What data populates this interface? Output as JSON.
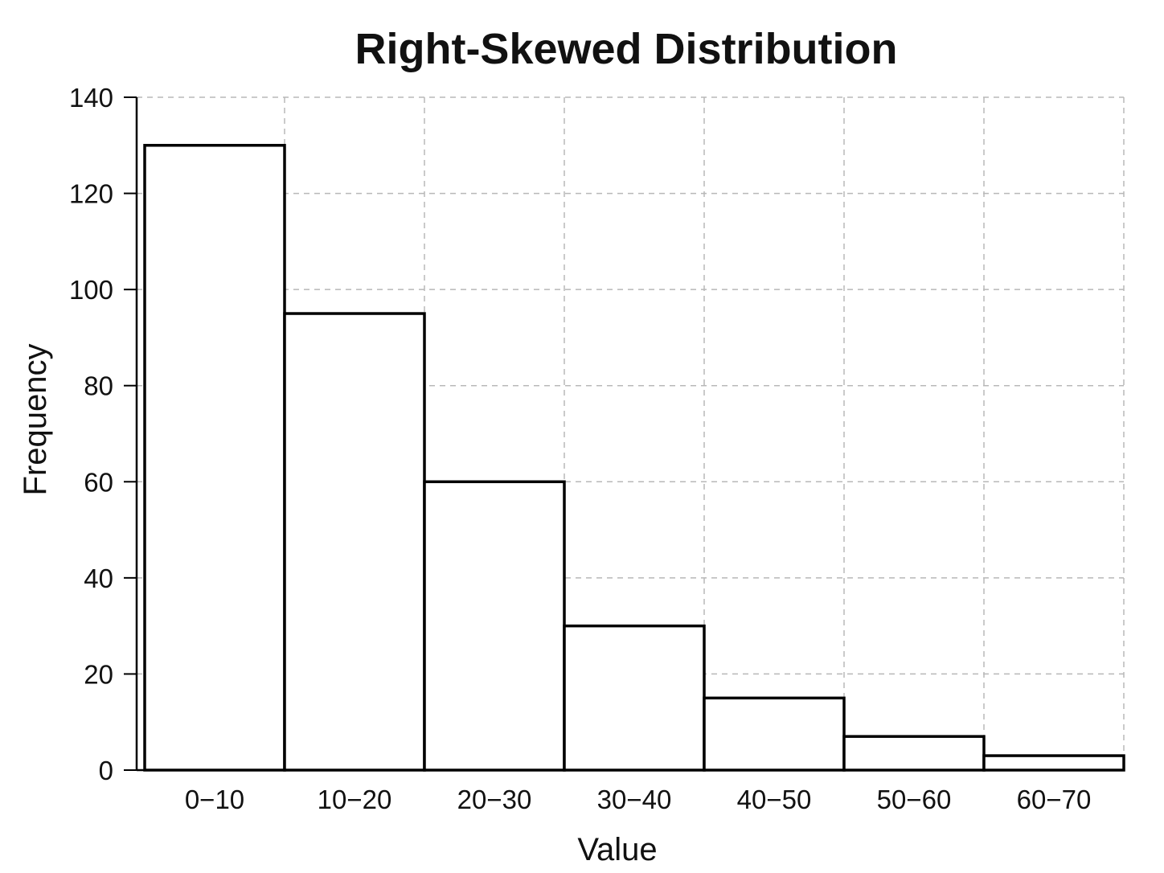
{
  "chart_data": {
    "type": "bar",
    "title": "Right-Skewed Distribution",
    "xlabel": "Value",
    "ylabel": "Frequency",
    "categories": [
      "0−10",
      "10−20",
      "20−30",
      "30−40",
      "40−50",
      "50−60",
      "60−70"
    ],
    "values": [
      130,
      95,
      60,
      30,
      15,
      7,
      3
    ],
    "ylim": [
      0,
      140
    ],
    "yticks": [
      0,
      20,
      40,
      60,
      80,
      100,
      120,
      140
    ],
    "grid": true,
    "bar_fill": "#ffffff",
    "bar_edge": "#000000"
  }
}
